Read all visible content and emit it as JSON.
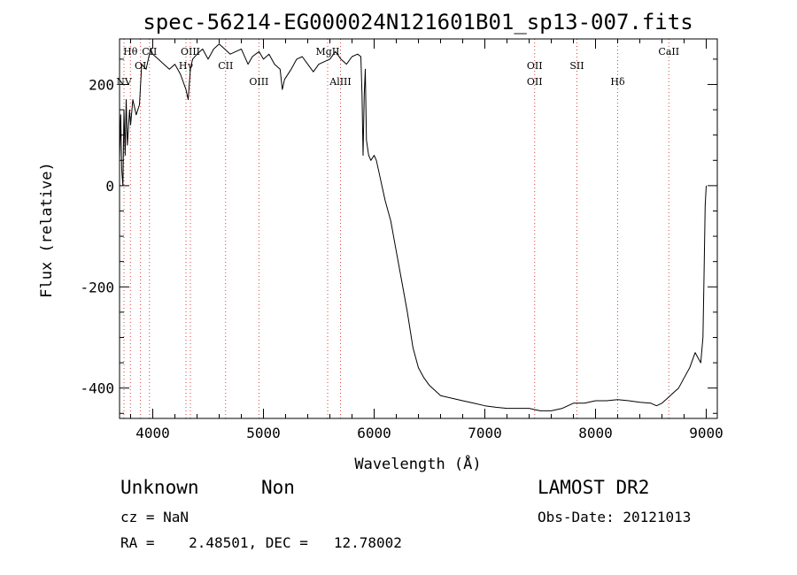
{
  "chart_data": {
    "type": "line",
    "title": "spec-56214-EG000024N121601B01_sp13-007.fits",
    "xlabel": "Wavelength (Å)",
    "ylabel": "Flux (relative)",
    "xlim": [
      3700,
      9100
    ],
    "ylim": [
      -460,
      290
    ],
    "xticks": [
      4000,
      5000,
      6000,
      7000,
      8000,
      9000
    ],
    "yticks": [
      -400,
      -200,
      0,
      200
    ],
    "grid": false,
    "series": [
      {
        "x": [
          3700,
          3710,
          3720,
          3730,
          3740,
          3750,
          3760,
          3770,
          3790,
          3800,
          3820,
          3850,
          3880,
          3900,
          3940,
          3980,
          4000,
          4050,
          4100,
          4150,
          4200,
          4250,
          4300,
          4320,
          4340,
          4360,
          4400,
          4450,
          4500,
          4550,
          4600,
          4700,
          4800,
          4861,
          4900,
          4960,
          5000,
          5050,
          5100,
          5150,
          5170,
          5190,
          5250,
          5300,
          5350,
          5400,
          5450,
          5500,
          5550,
          5600,
          5650,
          5700,
          5750,
          5800,
          5850,
          5880,
          5890,
          5895,
          5900,
          5910,
          5920,
          5930,
          5950,
          5970,
          6000,
          6020,
          6040,
          6060,
          6080,
          6100,
          6150,
          6200,
          6250,
          6300,
          6350,
          6400,
          6450,
          6500,
          6550,
          6600,
          6700,
          6800,
          6900,
          7000,
          7100,
          7200,
          7300,
          7400,
          7500,
          7600,
          7700,
          7800,
          7900,
          8000,
          8100,
          8200,
          8300,
          8400,
          8500,
          8550,
          8600,
          8650,
          8700,
          8750,
          8800,
          8850,
          8900,
          8950,
          8970,
          8980,
          8990,
          9000
        ],
        "y": [
          50,
          140,
          30,
          0,
          150,
          60,
          170,
          80,
          150,
          120,
          170,
          140,
          160,
          240,
          230,
          270,
          260,
          250,
          240,
          230,
          240,
          220,
          190,
          170,
          230,
          250,
          260,
          270,
          250,
          270,
          280,
          260,
          270,
          240,
          255,
          265,
          250,
          260,
          240,
          230,
          190,
          210,
          230,
          250,
          255,
          240,
          225,
          240,
          245,
          250,
          265,
          250,
          240,
          255,
          260,
          255,
          180,
          120,
          60,
          180,
          230,
          90,
          60,
          50,
          60,
          50,
          30,
          10,
          -10,
          -30,
          -70,
          -130,
          -190,
          -250,
          -320,
          -360,
          -380,
          -395,
          -405,
          -415,
          -420,
          -425,
          -430,
          -435,
          -438,
          -440,
          -440,
          -440,
          -445,
          -445,
          -440,
          -430,
          -430,
          -425,
          -425,
          -423,
          -425,
          -428,
          -430,
          -435,
          -430,
          -420,
          -410,
          -400,
          -380,
          -360,
          -330,
          -350,
          -300,
          -180,
          -40,
          0
        ]
      }
    ],
    "lines": [
      {
        "label": "Hθ",
        "x": 3798,
        "row": 1
      },
      {
        "label": "NV",
        "x": 3740,
        "row": 3
      },
      {
        "label": "OI",
        "x": 3889,
        "row": 2
      },
      {
        "label": "CII",
        "x": 3970,
        "row": 1
      },
      {
        "label": "OIII",
        "x": 4340,
        "row": 1
      },
      {
        "label": "Hγ",
        "x": 4300,
        "row": 2
      },
      {
        "label": "CII",
        "x": 4658,
        "row": 2
      },
      {
        "label": "OIII",
        "x": 4959,
        "row": 3
      },
      {
        "label": "MgII",
        "x": 5580,
        "row": 1
      },
      {
        "label": "AlIII",
        "x": 5696,
        "row": 3
      },
      {
        "label": "OII",
        "x": 7450,
        "row": 2
      },
      {
        "label": "OII",
        "x": 7450,
        "row": 3
      },
      {
        "label": "SII",
        "x": 7832,
        "row": 2
      },
      {
        "label": "Hδ",
        "x": 8200,
        "row": 3
      },
      {
        "label": "CaII",
        "x": 8662,
        "row": 1
      }
    ]
  },
  "info": {
    "classification": "Unknown",
    "subclass": "Non",
    "survey": "LAMOST DR2",
    "redshift": "cz = NaN",
    "obs_date": "Obs-Date: 20121013",
    "coords": "RA =    2.48501, DEC =   12.78002"
  }
}
